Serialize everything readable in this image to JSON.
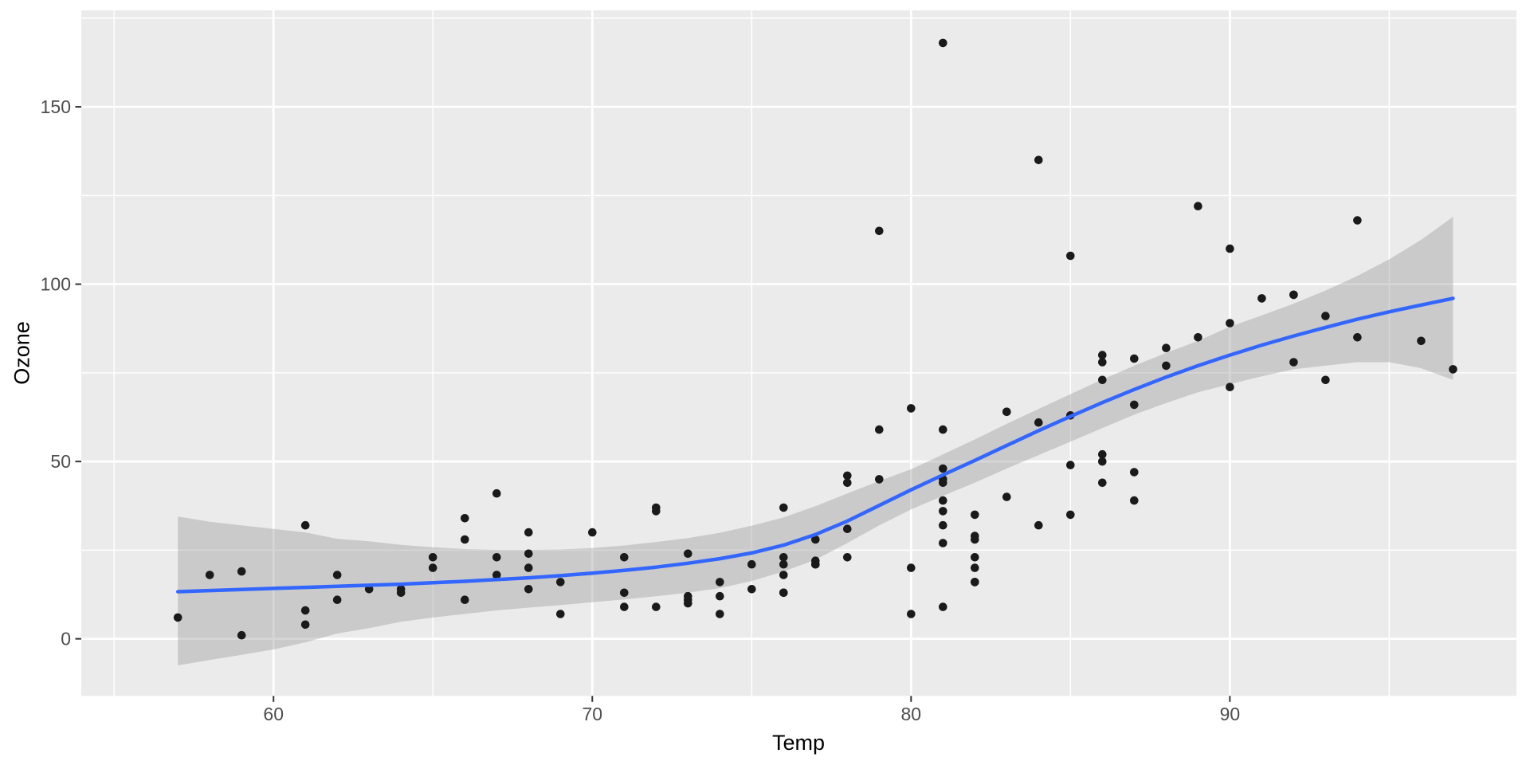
{
  "figure": {
    "background": "#FFFFFF"
  },
  "axes": {
    "x_title": "Temp",
    "y_title": "Ozone"
  },
  "chart_data": {
    "type": "scatter",
    "title": "",
    "xlabel": "Temp",
    "ylabel": "Ozone",
    "xlim": [
      53.97,
      98.99
    ],
    "ylim": [
      -16.1,
      177.2
    ],
    "x_major_ticks": [
      60,
      70,
      80,
      90
    ],
    "y_major_ticks": [
      0,
      50,
      100,
      150
    ],
    "x_minor_ticks": [
      55,
      65,
      75,
      85,
      95
    ],
    "y_minor_ticks": [
      25,
      75,
      125,
      175
    ],
    "grid": true,
    "legend": "none",
    "style": {
      "panel_bg": "#EBEBEB",
      "grid_color": "#FFFFFF",
      "major_grid_width": 2.7,
      "minor_grid_width": 1.5,
      "tick_color": "#333333",
      "tick_label_color": "#4D4D4D",
      "tick_label_size": 23,
      "point_color": "#1A1A1A",
      "point_radius": 5.3,
      "line_color": "#3366FF",
      "line_width": 4.5,
      "ribbon_color": "#999999",
      "ribbon_opacity": 0.4
    },
    "series": [
      {
        "name": "observations",
        "kind": "points",
        "points": [
          [
            67,
            41
          ],
          [
            72,
            36
          ],
          [
            74,
            12
          ],
          [
            62,
            18
          ],
          [
            66,
            28
          ],
          [
            65,
            23
          ],
          [
            59,
            19
          ],
          [
            61,
            8
          ],
          [
            74,
            7
          ],
          [
            69,
            16
          ],
          [
            66,
            11
          ],
          [
            68,
            14
          ],
          [
            58,
            18
          ],
          [
            64,
            14
          ],
          [
            66,
            34
          ],
          [
            57,
            6
          ],
          [
            68,
            30
          ],
          [
            62,
            11
          ],
          [
            59,
            1
          ],
          [
            73,
            11
          ],
          [
            61,
            4
          ],
          [
            61,
            32
          ],
          [
            67,
            23
          ],
          [
            81,
            45
          ],
          [
            79,
            115
          ],
          [
            76,
            37
          ],
          [
            82,
            29
          ],
          [
            90,
            71
          ],
          [
            87,
            39
          ],
          [
            82,
            23
          ],
          [
            77,
            21
          ],
          [
            72,
            37
          ],
          [
            65,
            20
          ],
          [
            73,
            12
          ],
          [
            76,
            13
          ],
          [
            84,
            135
          ],
          [
            85,
            49
          ],
          [
            81,
            32
          ],
          [
            83,
            64
          ],
          [
            83,
            40
          ],
          [
            88,
            77
          ],
          [
            92,
            97
          ],
          [
            92,
            97
          ],
          [
            89,
            85
          ],
          [
            73,
            10
          ],
          [
            81,
            27
          ],
          [
            80,
            7
          ],
          [
            81,
            48
          ],
          [
            82,
            35
          ],
          [
            84,
            61
          ],
          [
            87,
            79
          ],
          [
            85,
            63
          ],
          [
            74,
            16
          ],
          [
            86,
            80
          ],
          [
            85,
            108
          ],
          [
            82,
            20
          ],
          [
            86,
            52
          ],
          [
            88,
            82
          ],
          [
            86,
            50
          ],
          [
            83,
            64
          ],
          [
            81,
            59
          ],
          [
            81,
            39
          ],
          [
            81,
            9
          ],
          [
            82,
            16
          ],
          [
            86,
            78
          ],
          [
            85,
            35
          ],
          [
            87,
            66
          ],
          [
            89,
            122
          ],
          [
            90,
            89
          ],
          [
            90,
            110
          ],
          [
            86,
            44
          ],
          [
            82,
            28
          ],
          [
            80,
            65
          ],
          [
            77,
            22
          ],
          [
            79,
            59
          ],
          [
            76,
            23
          ],
          [
            78,
            31
          ],
          [
            78,
            44
          ],
          [
            77,
            21
          ],
          [
            72,
            9
          ],
          [
            79,
            45
          ],
          [
            81,
            168
          ],
          [
            86,
            73
          ],
          [
            97,
            76
          ],
          [
            94,
            118
          ],
          [
            96,
            84
          ],
          [
            94,
            85
          ],
          [
            91,
            96
          ],
          [
            92,
            78
          ],
          [
            93,
            73
          ],
          [
            93,
            91
          ],
          [
            87,
            47
          ],
          [
            84,
            32
          ],
          [
            80,
            20
          ],
          [
            78,
            23
          ],
          [
            75,
            21
          ],
          [
            73,
            24
          ],
          [
            81,
            44
          ],
          [
            76,
            21
          ],
          [
            77,
            28
          ],
          [
            71,
            9
          ],
          [
            71,
            13
          ],
          [
            78,
            46
          ],
          [
            67,
            18
          ],
          [
            76,
            13
          ],
          [
            68,
            24
          ],
          [
            82,
            16
          ],
          [
            64,
            13
          ],
          [
            71,
            23
          ],
          [
            81,
            36
          ],
          [
            69,
            7
          ],
          [
            63,
            14
          ],
          [
            70,
            30
          ],
          [
            75,
            14
          ],
          [
            76,
            18
          ],
          [
            68,
            20
          ]
        ]
      },
      {
        "name": "loess-smooth",
        "kind": "line",
        "points": [
          [
            57,
            13.3
          ],
          [
            58,
            13.6
          ],
          [
            59,
            13.9
          ],
          [
            60,
            14.2
          ],
          [
            61,
            14.5
          ],
          [
            62,
            14.8
          ],
          [
            63,
            15.1
          ],
          [
            64,
            15.4
          ],
          [
            65,
            15.8
          ],
          [
            66,
            16.2
          ],
          [
            67,
            16.7
          ],
          [
            68,
            17.2
          ],
          [
            69,
            17.8
          ],
          [
            70,
            18.5
          ],
          [
            71,
            19.3
          ],
          [
            72,
            20.2
          ],
          [
            73,
            21.3
          ],
          [
            74,
            22.6
          ],
          [
            75,
            24.2
          ],
          [
            76,
            26.4
          ],
          [
            77,
            29.4
          ],
          [
            78,
            33.2
          ],
          [
            79,
            37.6
          ],
          [
            80,
            42.0
          ],
          [
            81,
            46.2
          ],
          [
            82,
            50.3
          ],
          [
            83,
            54.5
          ],
          [
            84,
            58.7
          ],
          [
            85,
            62.7
          ],
          [
            86,
            66.6
          ],
          [
            87,
            70.3
          ],
          [
            88,
            73.8
          ],
          [
            89,
            77.0
          ],
          [
            90,
            80.0
          ],
          [
            91,
            82.8
          ],
          [
            92,
            85.4
          ],
          [
            93,
            87.8
          ],
          [
            94,
            90.1
          ],
          [
            95,
            92.2
          ],
          [
            96,
            94.1
          ],
          [
            97,
            96.0
          ]
        ]
      },
      {
        "name": "confidence-ribbon",
        "kind": "ribbon",
        "points": [
          [
            57,
            -7.5,
            34.5
          ],
          [
            58,
            -6,
            33
          ],
          [
            59,
            -4.5,
            32
          ],
          [
            60,
            -3,
            31
          ],
          [
            61,
            -1,
            30
          ],
          [
            62,
            1.5,
            28.2
          ],
          [
            63,
            3,
            27.5
          ],
          [
            64,
            4.8,
            26.5
          ],
          [
            65,
            6,
            25.8
          ],
          [
            66,
            7,
            25.3
          ],
          [
            67,
            8,
            25.1
          ],
          [
            68,
            8.8,
            25.1
          ],
          [
            69,
            9.5,
            25.2
          ],
          [
            70,
            10.3,
            25.6
          ],
          [
            71,
            11.1,
            26.3
          ],
          [
            72,
            12,
            27.3
          ],
          [
            73,
            13,
            28.4
          ],
          [
            74,
            14.3,
            29.9
          ],
          [
            75,
            16.3,
            31.9
          ],
          [
            76,
            19,
            34.2
          ],
          [
            77,
            22.3,
            37.4
          ],
          [
            78,
            27,
            41
          ],
          [
            79,
            32,
            44.5
          ],
          [
            80,
            36.5,
            47.8
          ],
          [
            81,
            40.3,
            52
          ],
          [
            82,
            44,
            56.2
          ],
          [
            83,
            48,
            60.6
          ],
          [
            84,
            51.8,
            64.8
          ],
          [
            85,
            55.6,
            69
          ],
          [
            86,
            59.4,
            73.1
          ],
          [
            87,
            63.2,
            77
          ],
          [
            88,
            66.5,
            80.6
          ],
          [
            89,
            69.5,
            84
          ],
          [
            90,
            71.8,
            88
          ],
          [
            91,
            74,
            91.2
          ],
          [
            92,
            76,
            94.5
          ],
          [
            93,
            77,
            98.2
          ],
          [
            94,
            78,
            102.3
          ],
          [
            95,
            78,
            107
          ],
          [
            96,
            76.3,
            112.5
          ],
          [
            97,
            73,
            119
          ]
        ]
      }
    ]
  }
}
